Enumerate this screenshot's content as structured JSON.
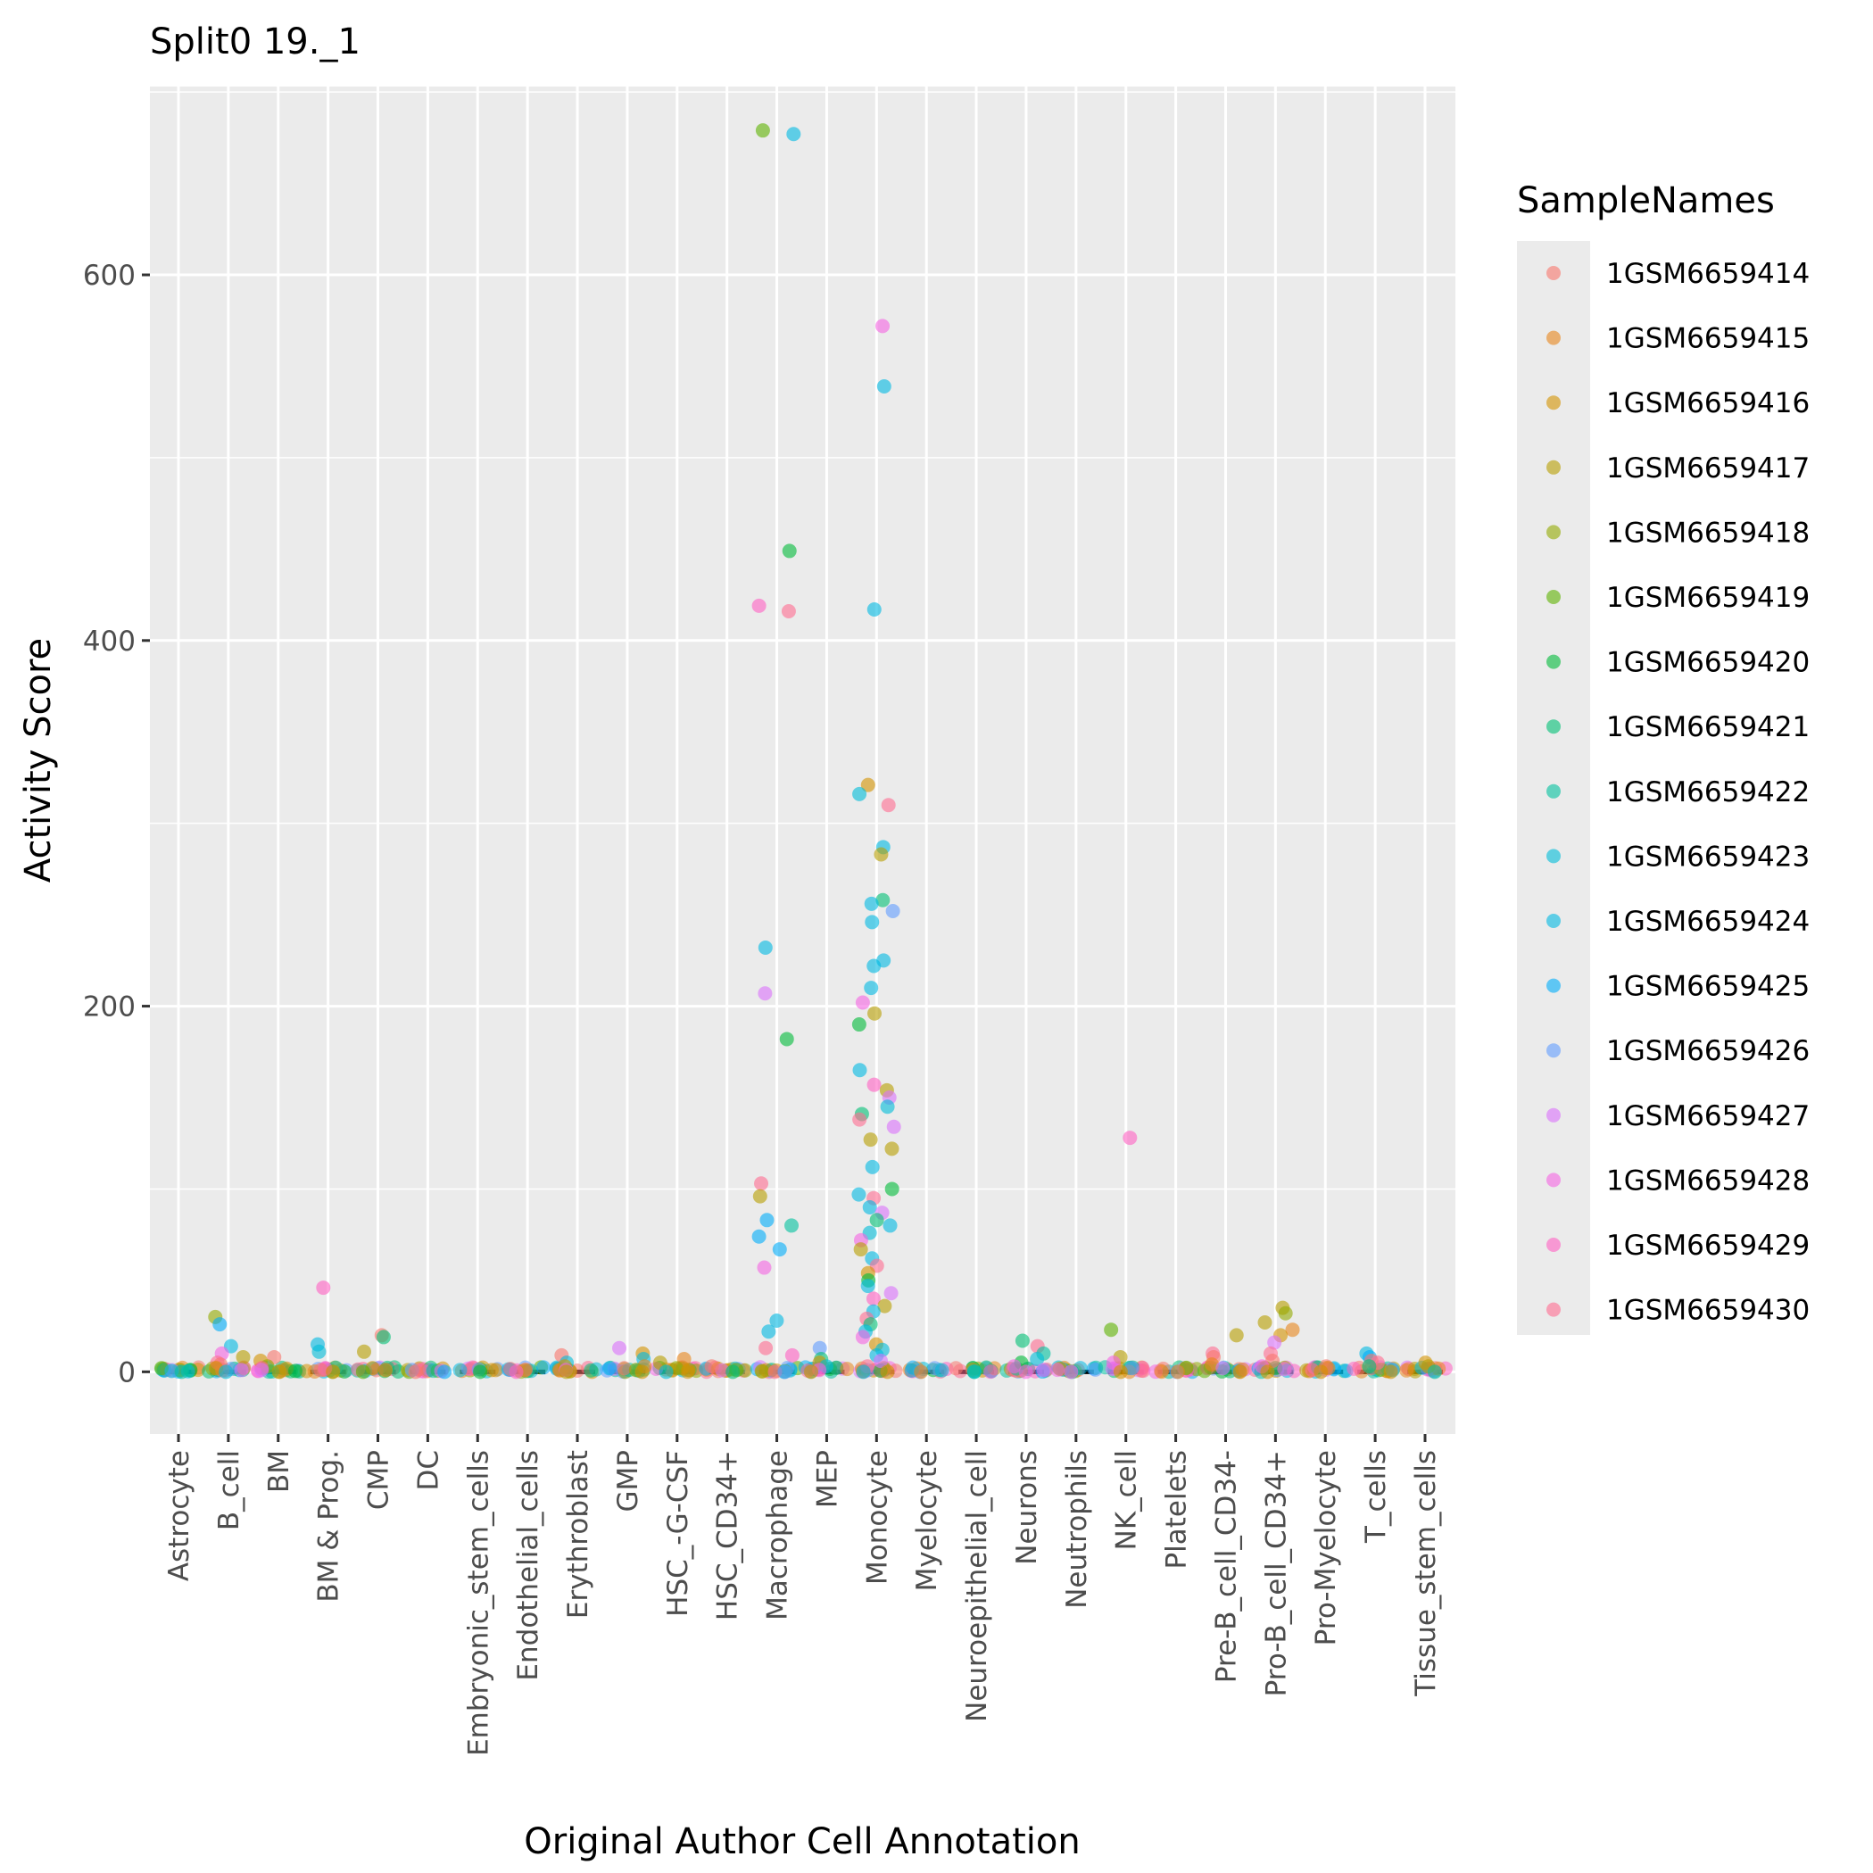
{
  "chart_data": {
    "type": "scatter",
    "title": "Split0 19._1",
    "xlabel": "Original Author Cell Annotation",
    "ylabel": "Activity Score",
    "categories": [
      "Astrocyte",
      "B_cell",
      "BM",
      "BM & Prog.",
      "CMP",
      "DC",
      "Embryonic_stem_cells",
      "Endothelial_cells",
      "Erythroblast",
      "GMP",
      "HSC_-G-CSF",
      "HSC_CD34+",
      "Macrophage",
      "MEP",
      "Monocyte",
      "Myelocyte",
      "Neuroepithelial_cell",
      "Neurons",
      "Neutrophils",
      "NK_cell",
      "Platelets",
      "Pre-B_cell_CD34-",
      "Pro-B_cell_CD34+",
      "Pro-Myelocyte",
      "T_cells",
      "Tissue_stem_cells"
    ],
    "y_ticks": [
      0,
      200,
      400,
      600
    ],
    "y_tick_labels": [
      "0",
      "200",
      "400",
      "600"
    ],
    "ylim": [
      -34,
      703
    ],
    "grid": true,
    "legend": {
      "title": "SampleNames",
      "position": "right",
      "entries": [
        "1GSM6659414",
        "1GSM6659415",
        "1GSM6659416",
        "1GSM6659417",
        "1GSM6659418",
        "1GSM6659419",
        "1GSM6659420",
        "1GSM6659421",
        "1GSM6659422",
        "1GSM6659423",
        "1GSM6659424",
        "1GSM6659425",
        "1GSM6659426",
        "1GSM6659427",
        "1GSM6659428",
        "1GSM6659429",
        "1GSM6659430"
      ],
      "colors": [
        "#F8766D",
        "#E7861B",
        "#D39200",
        "#B79F00",
        "#93AA00",
        "#5EB300",
        "#00BA38",
        "#00BF74",
        "#00C19F",
        "#00BCD8",
        "#00B9E3",
        "#00ADFA",
        "#619CFF",
        "#DB72FB",
        "#F564E3",
        "#FF61C3",
        "#FF6C91"
      ]
    },
    "points": [
      {
        "category": "Astrocyte",
        "values": [
          [
            5,
            2
          ],
          [
            6,
            1
          ],
          [
            9,
            0.5
          ],
          [
            10,
            0.3
          ],
          [
            8,
            0
          ]
        ]
      },
      {
        "category": "B_cell",
        "values": [
          [
            4,
            30
          ],
          [
            11,
            26
          ],
          [
            10,
            14
          ],
          [
            14,
            10
          ],
          [
            3,
            8
          ],
          [
            16,
            5
          ],
          [
            0,
            4
          ],
          [
            2,
            2
          ],
          [
            13,
            1
          ],
          [
            9,
            0
          ]
        ]
      },
      {
        "category": "BM",
        "values": [
          [
            0,
            8
          ],
          [
            2,
            6
          ],
          [
            4,
            3
          ],
          [
            16,
            2
          ],
          [
            13,
            1
          ],
          [
            6,
            0.5
          ],
          [
            3,
            0
          ]
        ]
      },
      {
        "category": "BM & Prog.",
        "values": [
          [
            15,
            46
          ],
          [
            10,
            15
          ],
          [
            9,
            11
          ],
          [
            14,
            2
          ],
          [
            0,
            1
          ],
          [
            2,
            0
          ]
        ]
      },
      {
        "category": "CMP",
        "values": [
          [
            0,
            20
          ],
          [
            7,
            19
          ],
          [
            3,
            11
          ],
          [
            2,
            2
          ],
          [
            1,
            1
          ],
          [
            5,
            0
          ]
        ]
      },
      {
        "category": "DC",
        "values": [
          [
            12,
            1
          ],
          [
            13,
            0.5
          ],
          [
            11,
            0
          ],
          [
            0,
            0
          ]
        ]
      },
      {
        "category": "Embryonic_stem_cells",
        "values": [
          [
            6,
            0
          ]
        ]
      },
      {
        "category": "Endothelial_cells",
        "values": [
          [
            15,
            0
          ]
        ]
      },
      {
        "category": "Erythroblast",
        "values": [
          [
            0,
            9
          ],
          [
            9,
            5
          ],
          [
            2,
            3
          ],
          [
            14,
            1
          ],
          [
            3,
            0
          ]
        ]
      },
      {
        "category": "GMP",
        "values": [
          [
            13,
            13
          ],
          [
            2,
            10
          ],
          [
            10,
            7
          ],
          [
            1,
            3
          ],
          [
            4,
            1
          ],
          [
            2,
            0
          ]
        ]
      },
      {
        "category": "HSC_-G-CSF",
        "values": [
          [
            1,
            7
          ],
          [
            3,
            5
          ],
          [
            4,
            2
          ],
          [
            2,
            1
          ],
          [
            9,
            0
          ]
        ]
      },
      {
        "category": "HSC_CD34+",
        "values": [
          [
            0,
            3
          ],
          [
            5,
            1
          ],
          [
            7,
            0
          ]
        ]
      },
      {
        "category": "Macrophage",
        "values": [
          [
            5,
            679
          ],
          [
            10,
            677
          ],
          [
            6,
            449
          ],
          [
            15,
            419
          ],
          [
            16,
            416
          ],
          [
            10,
            232
          ],
          [
            13,
            207
          ],
          [
            6,
            182
          ],
          [
            16,
            103
          ],
          [
            3,
            96
          ],
          [
            11,
            83
          ],
          [
            8,
            80
          ],
          [
            11,
            74
          ],
          [
            11,
            67
          ],
          [
            14,
            57
          ],
          [
            10,
            28
          ],
          [
            10,
            22
          ],
          [
            16,
            13
          ],
          [
            15,
            9
          ],
          [
            10,
            0
          ],
          [
            16,
            0
          ],
          [
            12,
            0
          ]
        ]
      },
      {
        "category": "MEP",
        "values": [
          [
            12,
            13
          ],
          [
            7,
            7
          ],
          [
            2,
            5
          ],
          [
            9,
            3
          ],
          [
            14,
            1
          ],
          [
            2,
            0
          ]
        ]
      },
      {
        "category": "Monocyte",
        "values": [
          [
            14,
            572
          ],
          [
            10,
            539
          ],
          [
            10,
            417
          ],
          [
            2,
            321
          ],
          [
            9,
            316
          ],
          [
            16,
            310
          ],
          [
            10,
            287
          ],
          [
            3,
            283
          ],
          [
            7,
            258
          ],
          [
            10,
            256
          ],
          [
            12,
            252
          ],
          [
            10,
            246
          ],
          [
            10,
            225
          ],
          [
            10,
            222
          ],
          [
            10,
            210
          ],
          [
            14,
            202
          ],
          [
            3,
            196
          ],
          [
            6,
            190
          ],
          [
            10,
            165
          ],
          [
            15,
            157
          ],
          [
            3,
            154
          ],
          [
            13,
            150
          ],
          [
            9,
            145
          ],
          [
            7,
            141
          ],
          [
            16,
            138
          ],
          [
            13,
            134
          ],
          [
            3,
            127
          ],
          [
            3,
            122
          ],
          [
            10,
            112
          ],
          [
            6,
            100
          ],
          [
            10,
            97
          ],
          [
            16,
            95
          ],
          [
            10,
            90
          ],
          [
            13,
            87
          ],
          [
            7,
            83
          ],
          [
            10,
            80
          ],
          [
            9,
            76
          ],
          [
            14,
            72
          ],
          [
            3,
            67
          ],
          [
            10,
            62
          ],
          [
            16,
            58
          ],
          [
            2,
            54
          ],
          [
            6,
            50
          ],
          [
            10,
            47
          ],
          [
            13,
            43
          ],
          [
            15,
            40
          ],
          [
            3,
            36
          ],
          [
            10,
            33
          ],
          [
            16,
            29
          ],
          [
            7,
            26
          ],
          [
            10,
            22
          ],
          [
            14,
            19
          ],
          [
            2,
            15
          ],
          [
            9,
            12
          ],
          [
            10,
            9
          ],
          [
            13,
            6
          ],
          [
            16,
            3
          ],
          [
            2,
            0
          ],
          [
            10,
            0
          ]
        ]
      },
      {
        "category": "Myelocyte",
        "values": [
          [
            1,
            0
          ]
        ]
      },
      {
        "category": "Neuroepithelial_cell",
        "values": [
          [
            10,
            0
          ],
          [
            8,
            0
          ]
        ]
      },
      {
        "category": "Neurons",
        "values": [
          [
            7,
            17
          ],
          [
            16,
            14
          ],
          [
            8,
            10
          ],
          [
            9,
            7
          ],
          [
            6,
            5
          ],
          [
            14,
            3
          ],
          [
            13,
            1
          ],
          [
            14,
            0
          ]
        ]
      },
      {
        "category": "Neutrophils",
        "values": [
          [
            8,
            0
          ],
          [
            14,
            0
          ]
        ]
      },
      {
        "category": "NK_cell",
        "values": [
          [
            15,
            128
          ],
          [
            5,
            23
          ],
          [
            3,
            8
          ],
          [
            14,
            5
          ],
          [
            12,
            2
          ],
          [
            2,
            0
          ]
        ]
      },
      {
        "category": "Platelets",
        "values": [
          [
            12,
            0
          ],
          [
            1,
            0
          ]
        ]
      },
      {
        "category": "Pre-B_cell_CD34-",
        "values": [
          [
            3,
            20
          ],
          [
            16,
            10
          ],
          [
            0,
            8
          ],
          [
            1,
            4
          ],
          [
            13,
            2
          ],
          [
            2,
            0
          ]
        ]
      },
      {
        "category": "Pro-B_cell_CD34+",
        "values": [
          [
            3,
            35
          ],
          [
            4,
            32
          ],
          [
            3,
            27
          ],
          [
            1,
            23
          ],
          [
            2,
            20
          ],
          [
            13,
            16
          ],
          [
            16,
            10
          ],
          [
            0,
            6
          ],
          [
            14,
            3
          ],
          [
            2,
            0
          ]
        ]
      },
      {
        "category": "Pro-Myelocyte",
        "values": [
          [
            0,
            3
          ],
          [
            1,
            2
          ],
          [
            16,
            1
          ],
          [
            2,
            0
          ]
        ]
      },
      {
        "category": "T_cells",
        "values": [
          [
            10,
            10
          ],
          [
            11,
            8
          ],
          [
            0,
            6
          ],
          [
            16,
            5
          ],
          [
            7,
            3
          ],
          [
            9,
            1
          ],
          [
            2,
            0
          ]
        ]
      },
      {
        "category": "Tissue_stem_cells",
        "values": [
          [
            2,
            5
          ],
          [
            3,
            3
          ],
          [
            8,
            0
          ]
        ]
      }
    ]
  }
}
